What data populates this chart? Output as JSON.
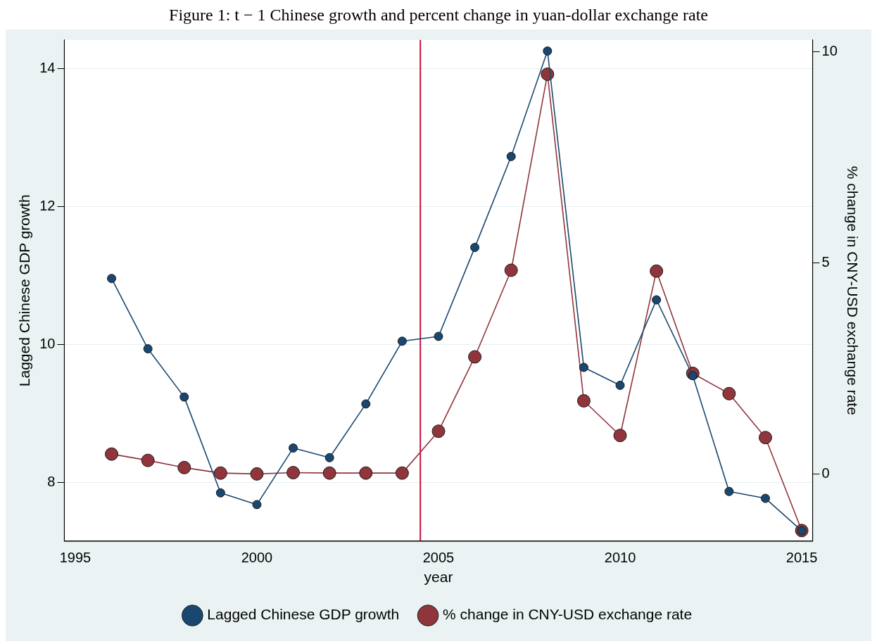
{
  "chart_data": {
    "type": "line",
    "title": "Figure 1: t − 1 Chinese growth and percent change in yuan-dollar exchange rate",
    "xlabel": "year",
    "ylabel": "Lagged Chinese GDP growth",
    "y2label": "% change in CNY-USD exchange rate",
    "x": [
      1996,
      1997,
      1998,
      1999,
      2000,
      2001,
      2002,
      2003,
      2004,
      2005,
      2006,
      2007,
      2008,
      2009,
      2010,
      2011,
      2012,
      2013,
      2014,
      2015
    ],
    "series": [
      {
        "name": "Lagged Chinese GDP growth",
        "color": "#1a476f",
        "values": [
          10.96,
          9.94,
          9.24,
          7.85,
          7.68,
          8.5,
          8.36,
          9.14,
          10.05,
          10.12,
          11.41,
          12.73,
          14.26,
          9.67,
          9.41,
          10.65,
          9.55,
          7.87,
          7.77,
          7.3
        ]
      },
      {
        "name": "% change in CNY-USD exchange rate",
        "color": "#90353b",
        "axis": "y2",
        "values": [
          0.47,
          0.32,
          0.15,
          0.02,
          0,
          0.03,
          0.02,
          0.02,
          0.02,
          1.01,
          2.77,
          4.82,
          9.46,
          1.73,
          0.91,
          4.8,
          2.38,
          1.9,
          0.86,
          -1.34
        ]
      }
    ],
    "xlim": [
      1994.7,
      2015.3
    ],
    "xticks": [
      1995,
      2000,
      2005,
      2010,
      2015
    ],
    "ylim": [
      7.15,
      14.42
    ],
    "yticks": [
      8,
      10,
      12,
      14
    ],
    "y2lim": [
      -1.59,
      10.27
    ],
    "y2ticks": [
      0,
      5,
      10
    ],
    "ref_lines": [
      {
        "axis": "x",
        "value": 2004.5,
        "color": "#c8103c"
      }
    ],
    "grid": "y",
    "legend": "bottom",
    "marker": "circle",
    "line_style": "solid"
  }
}
